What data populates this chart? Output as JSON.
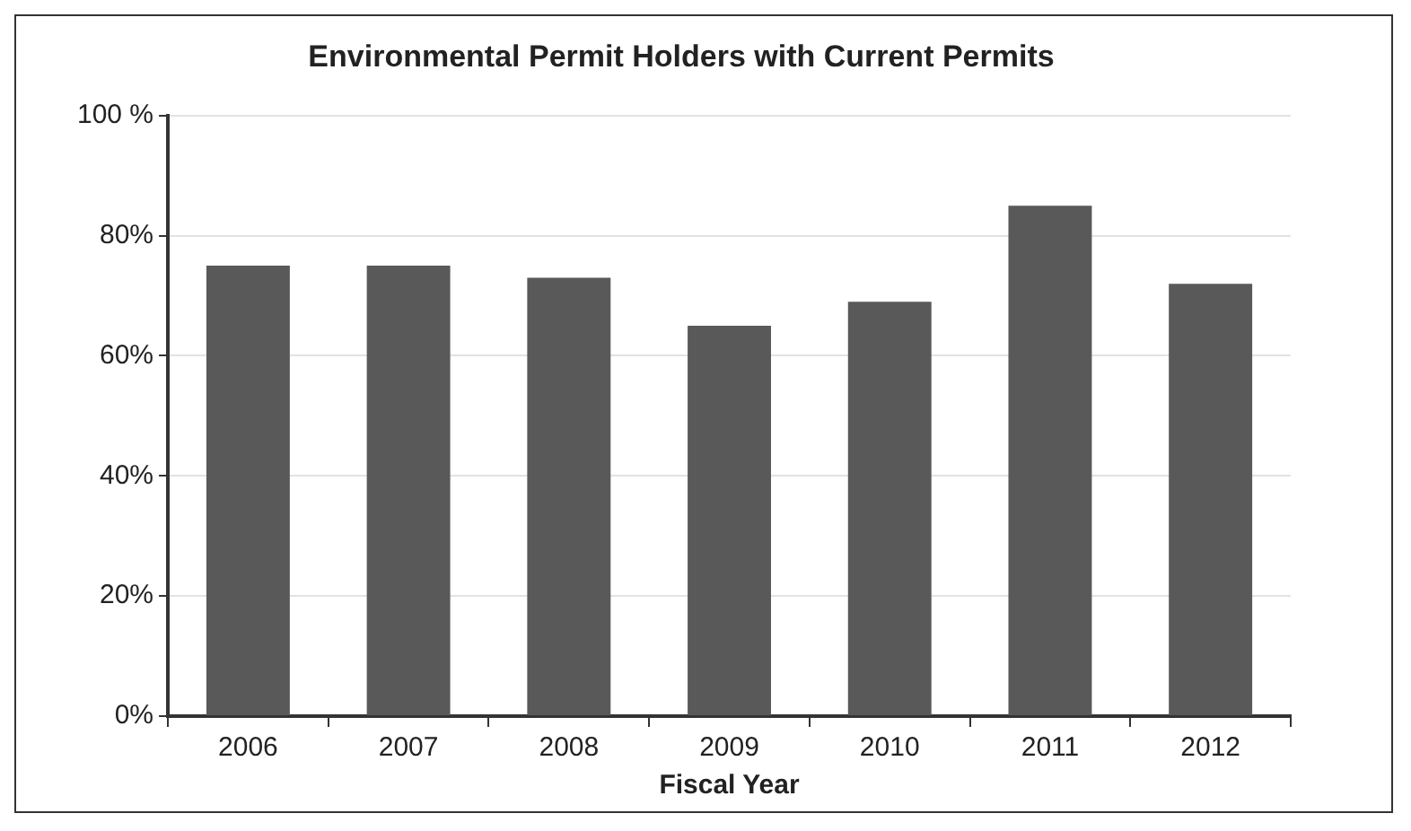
{
  "chart_data": {
    "type": "bar",
    "title": "Environmental Permit Holders with Current Permits",
    "xlabel": "Fiscal Year",
    "categories": [
      "2006",
      "2007",
      "2008",
      "2009",
      "2010",
      "2011",
      "2012"
    ],
    "values": [
      75,
      75,
      73,
      65,
      69,
      85,
      72
    ],
    "color": "#595959",
    "ylim": [
      0,
      100
    ],
    "yticks": [
      {
        "value": 0,
        "label": "0%"
      },
      {
        "value": 20,
        "label": "20%"
      },
      {
        "value": 40,
        "label": "40%"
      },
      {
        "value": 60,
        "label": "60%"
      },
      {
        "value": 80,
        "label": "80%"
      },
      {
        "value": 100,
        "label": "100 %"
      }
    ],
    "grid": "y",
    "legend": false
  }
}
